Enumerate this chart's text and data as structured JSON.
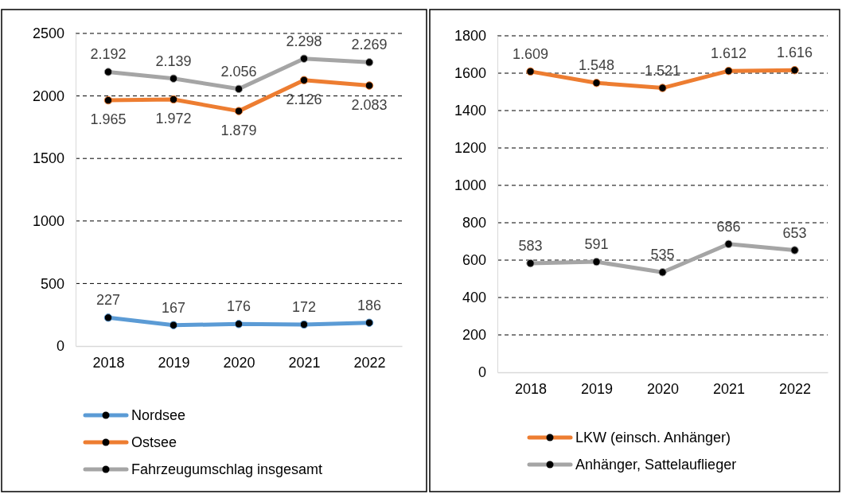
{
  "chart_data": [
    {
      "type": "line",
      "categories": [
        "2018",
        "2019",
        "2020",
        "2021",
        "2022"
      ],
      "ylim": [
        0,
        2500
      ],
      "yticks": [
        0,
        500,
        1000,
        1500,
        2000,
        2500
      ],
      "grid": "y",
      "legend": "bottom",
      "marker": "circle",
      "line_style": "solid",
      "series": [
        {
          "name": "Nordsee",
          "color": "#5b9bd5",
          "values": [
            227,
            167,
            176,
            172,
            186
          ],
          "value_labels": [
            "227",
            "167",
            "176",
            "172",
            "186"
          ]
        },
        {
          "name": "Ostsee",
          "color": "#ed7d31",
          "values": [
            1965,
            1972,
            1879,
            2126,
            2083
          ],
          "value_labels": [
            "1.965",
            "1.972",
            "1.879",
            "2.126",
            "2.083"
          ]
        },
        {
          "name": "Fahrzeugumschlag insgesamt",
          "color": "#a5a5a5",
          "values": [
            2192,
            2139,
            2056,
            2298,
            2269
          ],
          "value_labels": [
            "2.192",
            "2.139",
            "2.056",
            "2.298",
            "2.269"
          ]
        }
      ]
    },
    {
      "type": "line",
      "categories": [
        "2018",
        "2019",
        "2020",
        "2021",
        "2022"
      ],
      "ylim": [
        0,
        1800
      ],
      "yticks": [
        0,
        200,
        400,
        600,
        800,
        1000,
        1200,
        1400,
        1600,
        1800
      ],
      "grid": "y",
      "legend": "bottom",
      "marker": "circle",
      "line_style": "solid",
      "series": [
        {
          "name": "LKW (einsch. Anhänger)",
          "color": "#ed7d31",
          "values": [
            1609,
            1548,
            1521,
            1612,
            1616
          ],
          "value_labels": [
            "1.609",
            "1.548",
            "1.521",
            "1.612",
            "1.616"
          ]
        },
        {
          "name": "Anhänger, Sattelauflieger",
          "color": "#a5a5a5",
          "values": [
            583,
            591,
            535,
            686,
            653
          ],
          "value_labels": [
            "583",
            "591",
            "535",
            "686",
            "653"
          ]
        }
      ]
    }
  ]
}
